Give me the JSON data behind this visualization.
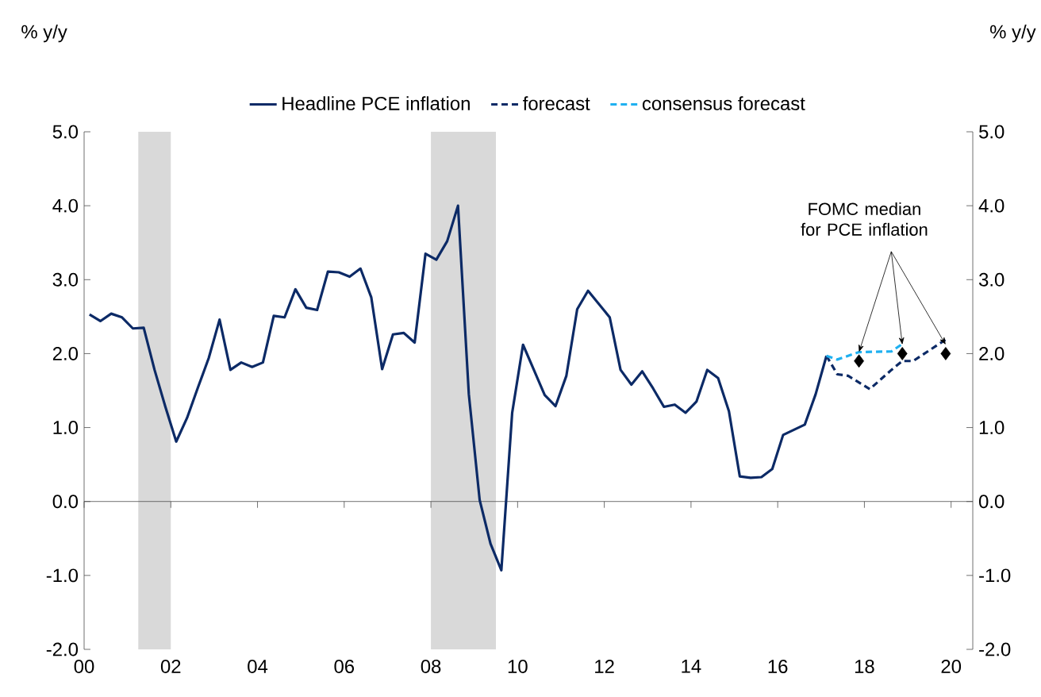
{
  "chart_data": {
    "type": "line",
    "ylabel": "% y/y",
    "y2label": "% y/y",
    "xlim": [
      2000,
      2020.5
    ],
    "xticks": [
      {
        "value": 2000,
        "label": "00"
      },
      {
        "value": 2002,
        "label": "02"
      },
      {
        "value": 2004,
        "label": "04"
      },
      {
        "value": 2006,
        "label": "06"
      },
      {
        "value": 2008,
        "label": "08"
      },
      {
        "value": 2010,
        "label": "10"
      },
      {
        "value": 2012,
        "label": "12"
      },
      {
        "value": 2014,
        "label": "14"
      },
      {
        "value": 2016,
        "label": "16"
      },
      {
        "value": 2018,
        "label": "18"
      },
      {
        "value": 2020,
        "label": "20"
      }
    ],
    "ylim": [
      -2,
      5
    ],
    "yticks": [
      {
        "value": -2,
        "label": "-2.0"
      },
      {
        "value": -1,
        "label": "-1.0"
      },
      {
        "value": 0,
        "label": "0.0"
      },
      {
        "value": 1,
        "label": "1.0"
      },
      {
        "value": 2,
        "label": "2.0"
      },
      {
        "value": 3,
        "label": "3.0"
      },
      {
        "value": 4,
        "label": "4.0"
      },
      {
        "value": 5,
        "label": "5.0"
      }
    ],
    "y2lim": [
      -2,
      5
    ],
    "y2ticks": [
      {
        "value": -2,
        "label": "-2.0"
      },
      {
        "value": -1,
        "label": "-1.0"
      },
      {
        "value": 0,
        "label": "0.0"
      },
      {
        "value": 1,
        "label": "1.0"
      },
      {
        "value": 2,
        "label": "2.0"
      },
      {
        "value": 3,
        "label": "3.0"
      },
      {
        "value": 4,
        "label": "4.0"
      },
      {
        "value": 5,
        "label": "5.0"
      }
    ],
    "legend": "top",
    "bands": [
      {
        "axis": "x",
        "from": 2001.25,
        "to": 2002.0,
        "color": "#d9d9d9"
      },
      {
        "axis": "x",
        "from": 2008.0,
        "to": 2009.5,
        "color": "#d9d9d9"
      }
    ],
    "series": [
      {
        "name": "Headline PCE inflation",
        "color": "#0c2a66",
        "line_style": "solid",
        "x": [
          2000.125,
          2000.375,
          2000.625,
          2000.875,
          2001.125,
          2001.375,
          2001.625,
          2001.875,
          2002.125,
          2002.375,
          2002.625,
          2002.875,
          2003.125,
          2003.375,
          2003.625,
          2003.875,
          2004.125,
          2004.375,
          2004.625,
          2004.875,
          2005.125,
          2005.375,
          2005.625,
          2005.875,
          2006.125,
          2006.375,
          2006.625,
          2006.875,
          2007.125,
          2007.375,
          2007.625,
          2007.875,
          2008.125,
          2008.375,
          2008.625,
          2008.875,
          2009.125,
          2009.375,
          2009.625,
          2009.875,
          2010.125,
          2010.375,
          2010.625,
          2010.875,
          2011.125,
          2011.375,
          2011.625,
          2011.875,
          2012.125,
          2012.375,
          2012.625,
          2012.875,
          2013.125,
          2013.375,
          2013.625,
          2013.875,
          2014.125,
          2014.375,
          2014.625,
          2014.875,
          2015.125,
          2015.375,
          2015.625,
          2015.875,
          2016.125,
          2016.375,
          2016.625,
          2016.875,
          2017.125
        ],
        "values": [
          2.53,
          2.44,
          2.54,
          2.49,
          2.34,
          2.35,
          1.78,
          1.28,
          0.81,
          1.13,
          1.54,
          1.94,
          2.46,
          1.78,
          1.88,
          1.82,
          1.88,
          2.51,
          2.49,
          2.87,
          2.62,
          2.59,
          3.11,
          3.1,
          3.04,
          3.15,
          2.76,
          1.79,
          2.26,
          2.28,
          2.15,
          3.35,
          3.27,
          3.52,
          4.0,
          1.45,
          0.02,
          -0.57,
          -0.93,
          1.2,
          2.12,
          1.78,
          1.44,
          1.29,
          1.7,
          2.6,
          2.85,
          2.67,
          2.49,
          1.78,
          1.58,
          1.76,
          1.53,
          1.28,
          1.31,
          1.2,
          1.35,
          1.78,
          1.67,
          1.22,
          0.34,
          0.32,
          0.33,
          0.44,
          0.9,
          0.97,
          1.04,
          1.45,
          1.97
        ]
      },
      {
        "name": "forecast",
        "color": "#0c2a66",
        "line_style": "dashed",
        "x": [
          2017.125,
          2017.375,
          2017.625,
          2018.125,
          2018.625,
          2018.875,
          2019.125,
          2019.875
        ],
        "values": [
          1.97,
          1.72,
          1.7,
          1.52,
          1.78,
          1.9,
          1.9,
          2.19
        ]
      },
      {
        "name": "consensus forecast",
        "color": "#1fb0f0",
        "line_style": "dashed",
        "x": [
          2017.125,
          2017.375,
          2017.875,
          2018.625,
          2018.875
        ],
        "values": [
          1.97,
          1.92,
          2.02,
          2.03,
          2.13
        ]
      },
      {
        "type": "scatter",
        "marker": "diamond",
        "color": "#000000",
        "x": [
          2017.875,
          2018.875,
          2019.875
        ],
        "values": [
          1.9,
          2.0,
          2.0
        ]
      }
    ],
    "annotations": [
      {
        "text": "FOMC median for PCE inflation",
        "x": 2018.875,
        "y": 2.0
      }
    ]
  }
}
